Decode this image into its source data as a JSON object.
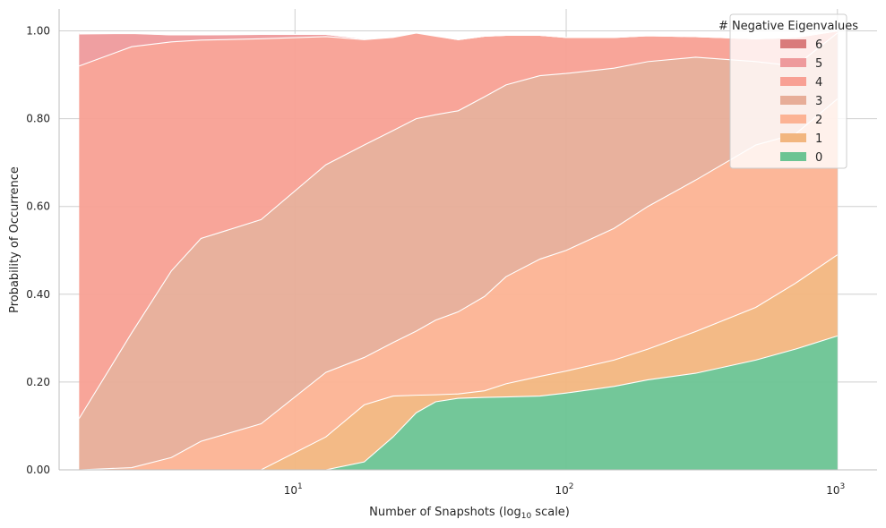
{
  "chart_data": {
    "type": "area",
    "stacked": true,
    "xscale": "log10",
    "xlabel": "Number of Snapshots (log",
    "xlabel_sub": "10",
    "xlabel_suffix": " scale)",
    "ylabel": "Probability of Occurrence",
    "xlim": [
      1.35,
      1400
    ],
    "ylim": [
      0,
      1.05
    ],
    "xticks": [
      10,
      100,
      1000
    ],
    "xtick_labels": [
      {
        "base": "10",
        "exp": "1"
      },
      {
        "base": "10",
        "exp": "2"
      },
      {
        "base": "10",
        "exp": "3"
      }
    ],
    "yticks": [
      0,
      0.2,
      0.4,
      0.6,
      0.8,
      1.0
    ],
    "ytick_labels": [
      "0.00",
      "0.20",
      "0.40",
      "0.60",
      "0.80",
      "1.00"
    ],
    "grid": true,
    "legend": {
      "title": "# Negative Eigenvalues",
      "placement": "top-right"
    },
    "x": [
      1.6,
      2.5,
      3.5,
      4.5,
      7.5,
      13,
      18,
      23,
      28,
      33,
      40,
      50,
      60,
      80,
      100,
      150,
      200,
      300,
      500,
      700,
      1000
    ],
    "series": [
      {
        "name": "0",
        "color": "#6cc493",
        "values": [
          0,
          0,
          0,
          0,
          0,
          0,
          0.018,
          0.075,
          0.13,
          0.155,
          0.163,
          0.165,
          0.166,
          0.168,
          0.175,
          0.19,
          0.205,
          0.22,
          0.25,
          0.275,
          0.305
        ]
      },
      {
        "name": "1",
        "color": "#f2b67f",
        "values": [
          0,
          0,
          0,
          0,
          0,
          0.075,
          0.13,
          0.093,
          0.04,
          0.016,
          0.01,
          0.015,
          0.03,
          0.045,
          0.05,
          0.06,
          0.07,
          0.095,
          0.12,
          0.15,
          0.185
        ]
      },
      {
        "name": "2",
        "color": "#fcb394",
        "values": [
          0,
          0.005,
          0.028,
          0.065,
          0.105,
          0.147,
          0.108,
          0.122,
          0.146,
          0.17,
          0.187,
          0.215,
          0.244,
          0.267,
          0.275,
          0.3,
          0.325,
          0.345,
          0.37,
          0.34,
          0.355
        ]
      },
      {
        "name": "3",
        "color": "#e7ad98",
        "values": [
          0.117,
          0.307,
          0.425,
          0.462,
          0.465,
          0.473,
          0.484,
          0.483,
          0.484,
          0.468,
          0.458,
          0.455,
          0.437,
          0.418,
          0.403,
          0.365,
          0.33,
          0.28,
          0.19,
          0.155,
          0.15
        ]
      },
      {
        "name": "4",
        "color": "#f8a094",
        "values": [
          0.803,
          0.652,
          0.522,
          0.452,
          0.412,
          0.292,
          0.24,
          0.212,
          0.195,
          0.179,
          0.162,
          0.138,
          0.113,
          0.092,
          0.082,
          0.07,
          0.059,
          0.047,
          0.052,
          0.065,
          0.005
        ]
      },
      {
        "name": "5",
        "color": "#ee9a9c",
        "values": [
          0.073,
          0.03,
          0.016,
          0.012,
          0.01,
          0.005,
          0.002,
          0.002,
          0.001,
          0.001,
          0,
          0,
          0,
          0,
          0,
          0,
          0,
          0,
          0,
          0,
          0
        ]
      },
      {
        "name": "6",
        "color": "#d97b7b",
        "values": [
          0.002,
          0.001,
          0,
          0,
          0,
          0,
          0,
          0,
          0,
          0,
          0,
          0,
          0,
          0,
          0,
          0,
          0,
          0,
          0,
          0,
          0
        ]
      }
    ]
  }
}
